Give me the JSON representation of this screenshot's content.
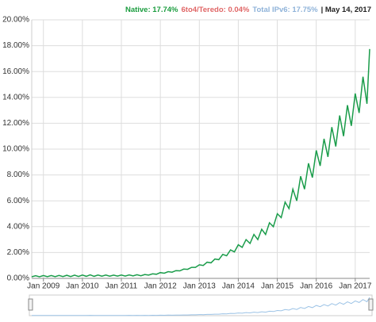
{
  "chart_data": {
    "type": "line",
    "header_items": [
      {
        "text": "Native: 17.74%",
        "color": "#1a9c3e"
      },
      {
        "text": "6to4/Teredo: 0.04%",
        "color": "#e06666"
      },
      {
        "text": "Total IPv6: 17.75%",
        "color": "#8fb3d9"
      },
      {
        "text": "| May 14, 2017",
        "color": "#222222"
      }
    ],
    "x": [
      2008.7,
      2008.8,
      2008.9,
      2009.0,
      2009.1,
      2009.2,
      2009.3,
      2009.4,
      2009.5,
      2009.6,
      2009.7,
      2009.8,
      2009.9,
      2010.0,
      2010.1,
      2010.2,
      2010.3,
      2010.4,
      2010.5,
      2010.6,
      2010.7,
      2010.8,
      2010.9,
      2011.0,
      2011.1,
      2011.2,
      2011.3,
      2011.4,
      2011.5,
      2011.6,
      2011.7,
      2011.8,
      2011.9,
      2012.0,
      2012.1,
      2012.2,
      2012.3,
      2012.4,
      2012.5,
      2012.6,
      2012.7,
      2012.8,
      2012.9,
      2013.0,
      2013.1,
      2013.2,
      2013.3,
      2013.4,
      2013.5,
      2013.6,
      2013.7,
      2013.8,
      2013.9,
      2014.0,
      2014.1,
      2014.2,
      2014.3,
      2014.4,
      2014.5,
      2014.6,
      2014.7,
      2014.8,
      2014.9,
      2015.0,
      2015.1,
      2015.2,
      2015.3,
      2015.4,
      2015.5,
      2015.6,
      2015.7,
      2015.8,
      2015.9,
      2016.0,
      2016.1,
      2016.2,
      2016.3,
      2016.4,
      2016.5,
      2016.6,
      2016.7,
      2016.8,
      2016.9,
      2017.0,
      2017.1,
      2017.2,
      2017.3,
      2017.37
    ],
    "series": [
      {
        "name": "Native",
        "color": "#1a9c4a",
        "values": [
          0.12,
          0.2,
          0.12,
          0.22,
          0.13,
          0.22,
          0.13,
          0.23,
          0.14,
          0.24,
          0.14,
          0.25,
          0.15,
          0.26,
          0.16,
          0.27,
          0.16,
          0.26,
          0.17,
          0.26,
          0.17,
          0.25,
          0.18,
          0.26,
          0.18,
          0.27,
          0.19,
          0.28,
          0.2,
          0.3,
          0.25,
          0.35,
          0.32,
          0.45,
          0.4,
          0.52,
          0.48,
          0.6,
          0.58,
          0.72,
          0.7,
          0.85,
          0.85,
          1.05,
          1.0,
          1.25,
          1.2,
          1.5,
          1.45,
          1.85,
          1.75,
          2.2,
          2.05,
          2.6,
          2.4,
          3.0,
          2.7,
          3.4,
          3.0,
          3.8,
          3.4,
          4.3,
          4.0,
          5.0,
          4.7,
          5.9,
          5.4,
          6.9,
          6.0,
          7.9,
          6.9,
          8.9,
          7.8,
          9.9,
          8.7,
          10.8,
          9.4,
          11.7,
          10.2,
          12.6,
          11.0,
          13.4,
          11.8,
          14.3,
          12.8,
          15.6,
          13.5,
          17.74
        ]
      }
    ],
    "xlim": [
      2008.7,
      2017.37
    ],
    "xticks": [
      {
        "value": 2009,
        "label": "Jan 2009"
      },
      {
        "value": 2010,
        "label": "Jan 2010"
      },
      {
        "value": 2011,
        "label": "Jan 2011"
      },
      {
        "value": 2012,
        "label": "Jan 2012"
      },
      {
        "value": 2013,
        "label": "Jan 2013"
      },
      {
        "value": 2014,
        "label": "Jan 2014"
      },
      {
        "value": 2015,
        "label": "Jan 2015"
      },
      {
        "value": 2016,
        "label": "Jan 2016"
      },
      {
        "value": 2017,
        "label": "Jan 2017"
      }
    ],
    "ylim": [
      0,
      20
    ],
    "yticks": [
      {
        "value": 0,
        "label": "0.00%"
      },
      {
        "value": 2,
        "label": "2.00%"
      },
      {
        "value": 4,
        "label": "4.00%"
      },
      {
        "value": 6,
        "label": "6.00%"
      },
      {
        "value": 8,
        "label": "8.00%"
      },
      {
        "value": 10,
        "label": "10.00%"
      },
      {
        "value": 12,
        "label": "12.00%"
      },
      {
        "value": 14,
        "label": "14.00%"
      },
      {
        "value": 16,
        "label": "16.00%"
      },
      {
        "value": 18,
        "label": "18.00%"
      },
      {
        "value": 20,
        "label": "20.00%"
      }
    ],
    "grid": true,
    "navigator_color": "#9cc3e6"
  }
}
